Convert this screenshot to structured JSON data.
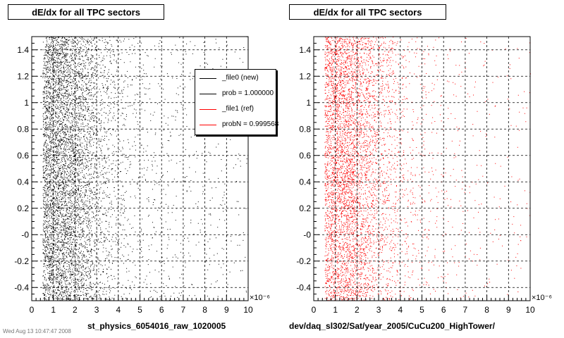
{
  "footer_text": "Wed Aug 13 10:47:47 2008",
  "panels": [
    {
      "title": "dE/dx for all TPC sectors",
      "x_file_label": "st_physics_6054016_raw_1020005",
      "exponent_label": "×10⁻⁶",
      "marker_color": "#000000"
    },
    {
      "title": "dE/dx for all TPC sectors",
      "x_file_label": "dev/daq_sl302/Sat/year_2005/CuCu200_HighTower/",
      "exponent_label": "×10⁻⁶",
      "marker_color": "#ff0000"
    }
  ],
  "legend": {
    "entries": [
      {
        "label": "_file0 (new)",
        "color": "#000000"
      },
      {
        "label": "prob = 1.000000",
        "color": "#000000"
      },
      {
        "label": "_file1 (ref)",
        "color": "#ff0000"
      },
      {
        "label": "probN = 0.999568",
        "color": "#ff0000"
      }
    ]
  },
  "chart_data": [
    {
      "type": "scatter",
      "title": "dE/dx for all TPC sectors",
      "xlabel": "st_physics_6054016_raw_1020005",
      "x_multiplier": "1e-6",
      "xlim": [
        0,
        10
      ],
      "ylim": [
        -0.5,
        1.5
      ],
      "x_ticks": [
        "0",
        "1",
        "2",
        "3",
        "4",
        "5",
        "6",
        "7",
        "8",
        "9",
        "10"
      ],
      "y_ticks": [
        "-0.4",
        "-0.2",
        "-0",
        "0.2",
        "0.4",
        "0.6",
        "0.8",
        "1",
        "1.2",
        "1.4"
      ],
      "grid": true,
      "legend_position": "top-right",
      "series": [
        {
          "name": "_file0 (new)",
          "color": "#000000",
          "density_by_x": [
            [
              0.5,
              0.9
            ],
            [
              1.0,
              1.0
            ],
            [
              1.5,
              0.95
            ],
            [
              2.0,
              0.75
            ],
            [
              2.5,
              0.5
            ],
            [
              3.0,
              0.3
            ],
            [
              4.0,
              0.12
            ],
            [
              5.0,
              0.06
            ],
            [
              7.0,
              0.03
            ],
            [
              10.0,
              0.02
            ]
          ]
        }
      ]
    },
    {
      "type": "scatter",
      "title": "dE/dx for all TPC sectors",
      "xlabel": "dev/daq_sl302/Sat/year_2005/CuCu200_HighTower/",
      "x_multiplier": "1e-6",
      "xlim": [
        0,
        10
      ],
      "ylim": [
        -0.5,
        1.5
      ],
      "x_ticks": [
        "0",
        "1",
        "2",
        "3",
        "4",
        "5",
        "6",
        "7",
        "8",
        "9",
        "10"
      ],
      "y_ticks": [
        "-0.4",
        "-0.2",
        "-0",
        "0.2",
        "0.4",
        "0.6",
        "0.8",
        "1",
        "1.2",
        "1.4"
      ],
      "grid": true,
      "series": [
        {
          "name": "_file1 (ref)",
          "color": "#ff0000",
          "density_by_x": [
            [
              0.5,
              0.7
            ],
            [
              1.0,
              0.85
            ],
            [
              1.5,
              0.8
            ],
            [
              2.0,
              0.65
            ],
            [
              2.5,
              0.45
            ],
            [
              3.0,
              0.28
            ],
            [
              4.0,
              0.1
            ],
            [
              5.0,
              0.05
            ],
            [
              7.0,
              0.025
            ],
            [
              10.0,
              0.015
            ]
          ]
        }
      ]
    }
  ]
}
